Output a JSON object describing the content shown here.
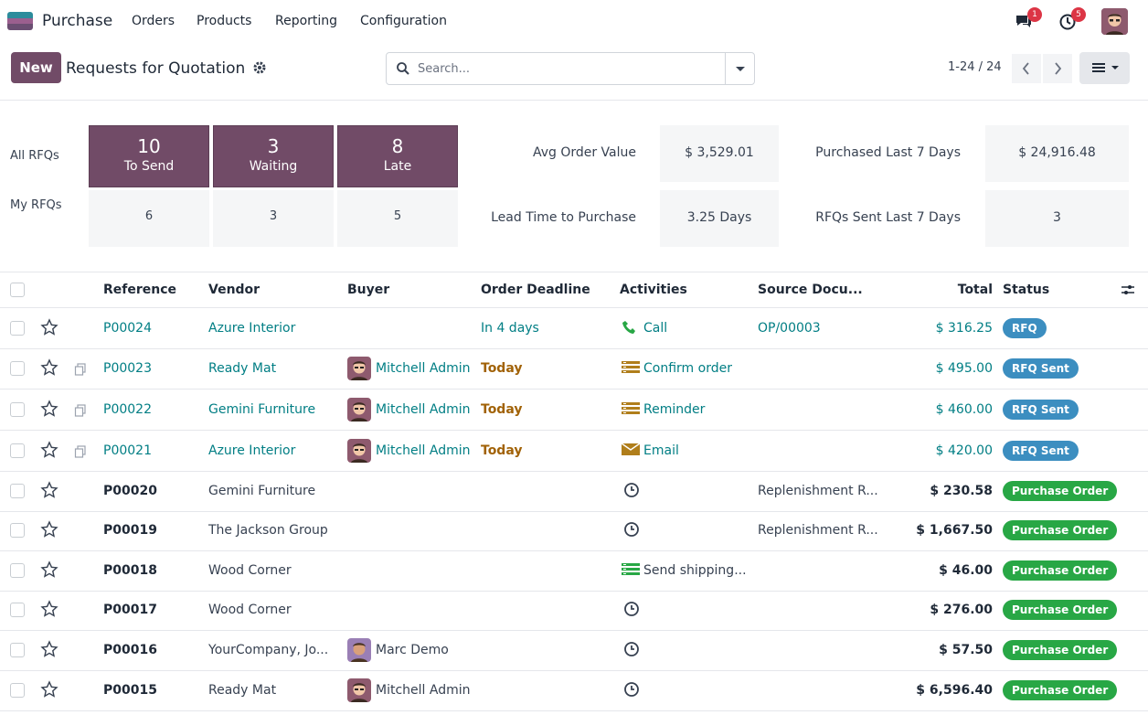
{
  "nav": {
    "app_name": "Purchase",
    "menu": [
      "Orders",
      "Products",
      "Reporting",
      "Configuration"
    ],
    "messages_count": "1",
    "activities_count": "5"
  },
  "control": {
    "new_label": "New",
    "title": "Requests for Quotation",
    "search_placeholder": "Search...",
    "pager": "1-24 / 24"
  },
  "dashboard": {
    "all_rfqs_label": "All RFQs",
    "my_rfqs_label": "My RFQs",
    "tiles": [
      {
        "count": "10",
        "label": "To Send"
      },
      {
        "count": "3",
        "label": "Waiting"
      },
      {
        "count": "8",
        "label": "Late"
      }
    ],
    "my_values": [
      "6",
      "3",
      "5"
    ],
    "kpis": [
      {
        "label": "Avg Order Value",
        "value": "$ 3,529.01"
      },
      {
        "label": "Purchased Last 7 Days",
        "value": "$ 24,916.48"
      },
      {
        "label": "Lead Time to Purchase",
        "value": "3.25 Days"
      },
      {
        "label": "RFQs Sent Last 7 Days",
        "value": "3"
      }
    ]
  },
  "table": {
    "headers": {
      "reference": "Reference",
      "vendor": "Vendor",
      "buyer": "Buyer",
      "deadline": "Order Deadline",
      "activities": "Activities",
      "source": "Source Docu...",
      "total": "Total",
      "status": "Status"
    },
    "rows": [
      {
        "ref": "P00024",
        "vendor": "Azure Interior",
        "buyer": "",
        "deadline": "In 4 days",
        "activity": "Call",
        "activity_icon": "phone-icon",
        "source": "OP/00003",
        "total": "$ 316.25",
        "status": "RFQ",
        "style": "rfq"
      },
      {
        "ref": "P00023",
        "vendor": "Ready Mat",
        "buyer": "Mitchell Admin",
        "deadline": "Today",
        "activity": "Confirm order",
        "activity_icon": "list-icon",
        "source": "",
        "total": "$ 495.00",
        "status": "RFQ Sent",
        "style": "sent"
      },
      {
        "ref": "P00022",
        "vendor": "Gemini Furniture",
        "buyer": "Mitchell Admin",
        "deadline": "Today",
        "activity": "Reminder",
        "activity_icon": "list-icon",
        "source": "",
        "total": "$ 460.00",
        "status": "RFQ Sent",
        "style": "sent"
      },
      {
        "ref": "P00021",
        "vendor": "Azure Interior",
        "buyer": "Mitchell Admin",
        "deadline": "Today",
        "activity": "Email",
        "activity_icon": "envelope-icon",
        "source": "",
        "total": "$ 420.00",
        "status": "RFQ Sent",
        "style": "sent"
      },
      {
        "ref": "P00020",
        "vendor": "Gemini Furniture",
        "buyer": "",
        "deadline": "",
        "activity": "",
        "activity_icon": "clock-icon",
        "source": "Replenishment R...",
        "total": "$ 230.58",
        "status": "Purchase Order",
        "style": "po"
      },
      {
        "ref": "P00019",
        "vendor": "The Jackson Group",
        "buyer": "",
        "deadline": "",
        "activity": "",
        "activity_icon": "clock-icon",
        "source": "Replenishment R...",
        "total": "$ 1,667.50",
        "status": "Purchase Order",
        "style": "po"
      },
      {
        "ref": "P00018",
        "vendor": "Wood Corner",
        "buyer": "",
        "deadline": "",
        "activity": "Send shipping...",
        "activity_icon": "list-green-icon",
        "source": "",
        "total": "$ 46.00",
        "status": "Purchase Order",
        "style": "po"
      },
      {
        "ref": "P00017",
        "vendor": "Wood Corner",
        "buyer": "",
        "deadline": "",
        "activity": "",
        "activity_icon": "clock-icon",
        "source": "",
        "total": "$ 276.00",
        "status": "Purchase Order",
        "style": "po"
      },
      {
        "ref": "P00016",
        "vendor": "YourCompany, Jo...",
        "buyer": "Marc Demo",
        "deadline": "",
        "activity": "",
        "activity_icon": "clock-icon",
        "source": "",
        "total": "$ 57.50",
        "status": "Purchase Order",
        "style": "po"
      },
      {
        "ref": "P00015",
        "vendor": "Ready Mat",
        "buyer": "Mitchell Admin",
        "deadline": "",
        "activity": "",
        "activity_icon": "clock-icon",
        "source": "",
        "total": "$ 6,596.40",
        "status": "Purchase Order",
        "style": "po"
      }
    ]
  }
}
